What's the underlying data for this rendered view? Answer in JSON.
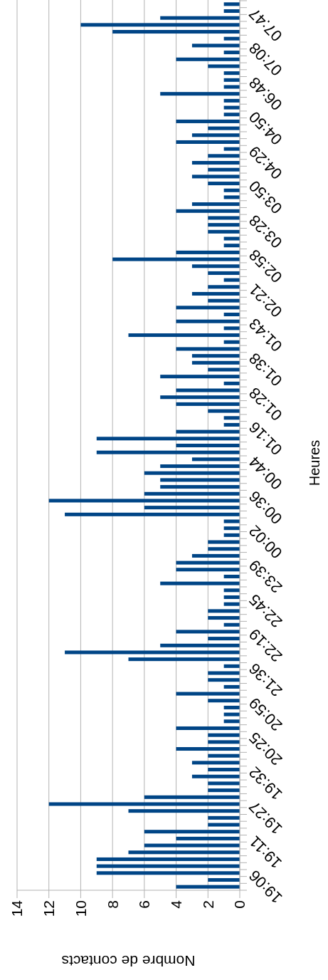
{
  "chart_data": {
    "type": "bar",
    "orientation": "horizontal",
    "xlabel": "Nombre de contacts",
    "ylabel": "Heures",
    "categories": [
      null,
      null,
      null,
      "07:47",
      null,
      null,
      null,
      null,
      "07:08",
      null,
      null,
      null,
      null,
      "06:48",
      null,
      null,
      null,
      null,
      "04:50",
      null,
      null,
      null,
      null,
      "04:29",
      null,
      null,
      null,
      null,
      "03:50",
      null,
      null,
      null,
      null,
      "03:28",
      null,
      null,
      null,
      null,
      "02:58",
      null,
      null,
      null,
      null,
      "02:21",
      null,
      null,
      null,
      null,
      "01:43",
      null,
      null,
      null,
      null,
      "01:38",
      null,
      null,
      null,
      null,
      "01:28",
      null,
      null,
      null,
      null,
      "01:16",
      null,
      null,
      null,
      null,
      "00:44",
      null,
      null,
      null,
      null,
      "00:36",
      null,
      null,
      null,
      null,
      "00:02",
      null,
      null,
      null,
      null,
      "23:39",
      null,
      null,
      null,
      null,
      "22:45",
      null,
      null,
      null,
      null,
      "22:19",
      null,
      null,
      null,
      null,
      "21:36",
      null,
      null,
      null,
      null,
      "20:59",
      null,
      null,
      null,
      null,
      "20:25",
      null,
      null,
      null,
      null,
      "19:32",
      null,
      null,
      null,
      null,
      "19:27",
      null,
      null,
      null,
      null,
      "19:11",
      null,
      null,
      null,
      null,
      "19:06"
    ],
    "values": [
      1,
      1,
      5,
      10,
      8,
      1,
      3,
      1,
      4,
      2,
      1,
      1,
      1,
      5,
      1,
      1,
      1,
      4,
      2,
      3,
      4,
      1,
      2,
      3,
      2,
      3,
      2,
      1,
      1,
      3,
      4,
      2,
      2,
      2,
      1,
      1,
      4,
      8,
      3,
      2,
      1,
      2,
      3,
      2,
      4,
      1,
      4,
      1,
      7,
      1,
      4,
      3,
      3,
      2,
      5,
      1,
      4,
      5,
      4,
      2,
      1,
      1,
      4,
      9,
      4,
      9,
      3,
      5,
      6,
      5,
      5,
      6,
      12,
      6,
      11,
      1,
      1,
      1,
      2,
      2,
      3,
      4,
      4,
      1,
      5,
      1,
      1,
      1,
      2,
      2,
      1,
      4,
      2,
      5,
      11,
      7,
      1,
      2,
      2,
      1,
      4,
      2,
      1,
      1,
      1,
      4,
      2,
      2,
      4,
      2,
      3,
      2,
      3,
      2,
      2,
      6,
      12,
      7,
      2,
      2,
      6,
      4,
      6,
      7,
      9,
      9,
      9,
      2,
      4
    ],
    "color": "#004586",
    "xlim": [
      14,
      0
    ],
    "xticks": [
      14,
      12,
      10,
      8,
      6,
      4,
      2,
      0
    ],
    "grid": "x"
  }
}
